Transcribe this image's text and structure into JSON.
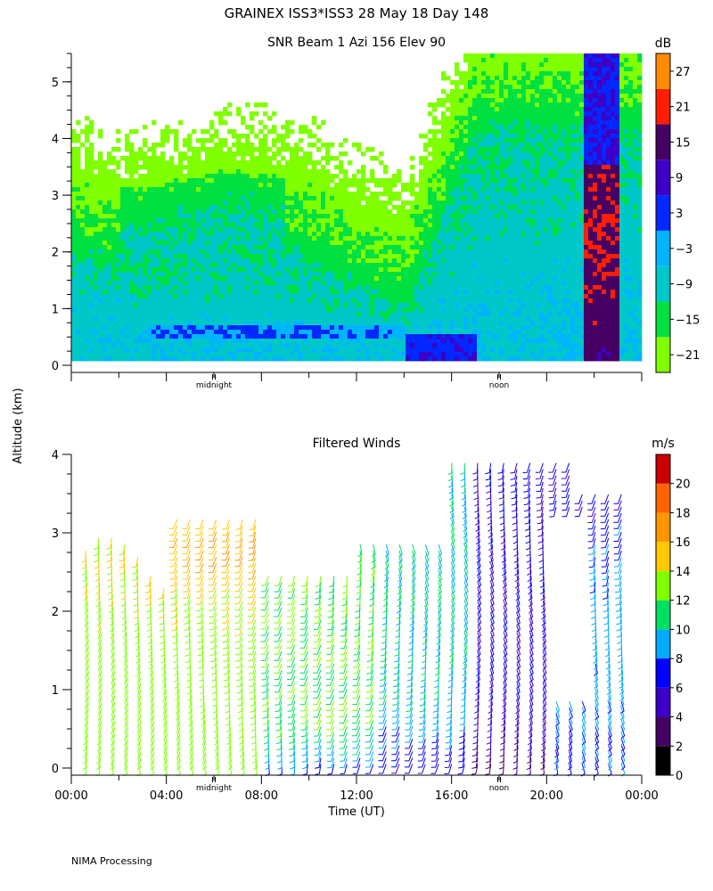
{
  "header": {
    "title": "GRAINEX ISS3*ISS3  28 May 18 Day 148",
    "shared_ylabel": "Altitude (km)",
    "footer": "NIMA Processing"
  },
  "chart_data": [
    {
      "type": "heatmap",
      "title": "SNR Beam 1 Azi 156 Elev 90",
      "ylabel": "Altitude (km)",
      "ylim": [
        0,
        5.5
      ],
      "yticks": [
        "0",
        "1",
        "2",
        "3",
        "4",
        "5"
      ],
      "xlim_hours": [
        0,
        24
      ],
      "x_markers": [
        {
          "x_hour": 6,
          "label": "midnight"
        },
        {
          "x_hour": 18,
          "label": "noon"
        }
      ],
      "colorbar": {
        "unit": "dB",
        "tick_labels": [
          "27",
          "21",
          "15",
          "9",
          "3",
          "−3",
          "−9",
          "−15",
          "−21"
        ],
        "tick_values": [
          27,
          21,
          15,
          9,
          3,
          -3,
          -9,
          -15,
          -21
        ],
        "levels": [
          -24,
          -18,
          -12,
          -6,
          0,
          6,
          12,
          18,
          24,
          30
        ],
        "colors": [
          "#80ff00",
          "#00e040",
          "#00c8c8",
          "#00b4ff",
          "#0028ff",
          "#3c00c8",
          "#460064",
          "#ff1e00",
          "#ff8c00",
          "#ffc800"
        ]
      }
    },
    {
      "type": "scatter",
      "title": "Filtered Winds",
      "ylim": [
        0,
        4
      ],
      "yticks": [
        "0",
        "1",
        "2",
        "3",
        "4"
      ],
      "xlabel": "Time (UT)",
      "xlim_hours": [
        0,
        24
      ],
      "xticks": [
        "00:00",
        "04:00",
        "08:00",
        "12:00",
        "16:00",
        "20:00",
        "00:00"
      ],
      "x_markers": [
        {
          "x_hour": 6,
          "label": "midnight"
        },
        {
          "x_hour": 18,
          "label": "noon"
        }
      ],
      "colorbar": {
        "unit": "m/s",
        "tick_labels": [
          "20",
          "18",
          "16",
          "14",
          "12",
          "10",
          "8",
          "6",
          "4",
          "2",
          "0"
        ],
        "tick_values": [
          20,
          18,
          16,
          14,
          12,
          10,
          8,
          6,
          4,
          2,
          0
        ],
        "levels": [
          0,
          2,
          4,
          6,
          8,
          10,
          12,
          14,
          16,
          18,
          20,
          22
        ],
        "colors": [
          "#000000",
          "#460064",
          "#3c00c8",
          "#0000ff",
          "#00aaff",
          "#00e060",
          "#80ff00",
          "#ffc800",
          "#ff9600",
          "#ff6400",
          "#c80000"
        ]
      }
    }
  ]
}
